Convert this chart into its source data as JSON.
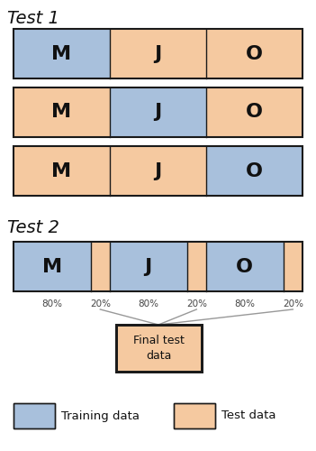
{
  "title1": "Test 1",
  "title2": "Test 2",
  "blue_color": "#a8c0dc",
  "orange_color": "#f5c9a0",
  "edge_color": "#1a1a1a",
  "text_color": "#111111",
  "label_color": "#444444",
  "month_labels": [
    "M",
    "J",
    "O"
  ],
  "test1_patterns": [
    [
      "blue",
      "orange",
      "orange"
    ],
    [
      "orange",
      "blue",
      "orange"
    ],
    [
      "orange",
      "orange",
      "blue"
    ]
  ],
  "final_box_text": "Final test\ndata",
  "legend_training": "Training data",
  "legend_test": "Test data",
  "arrow_color": "#999999"
}
